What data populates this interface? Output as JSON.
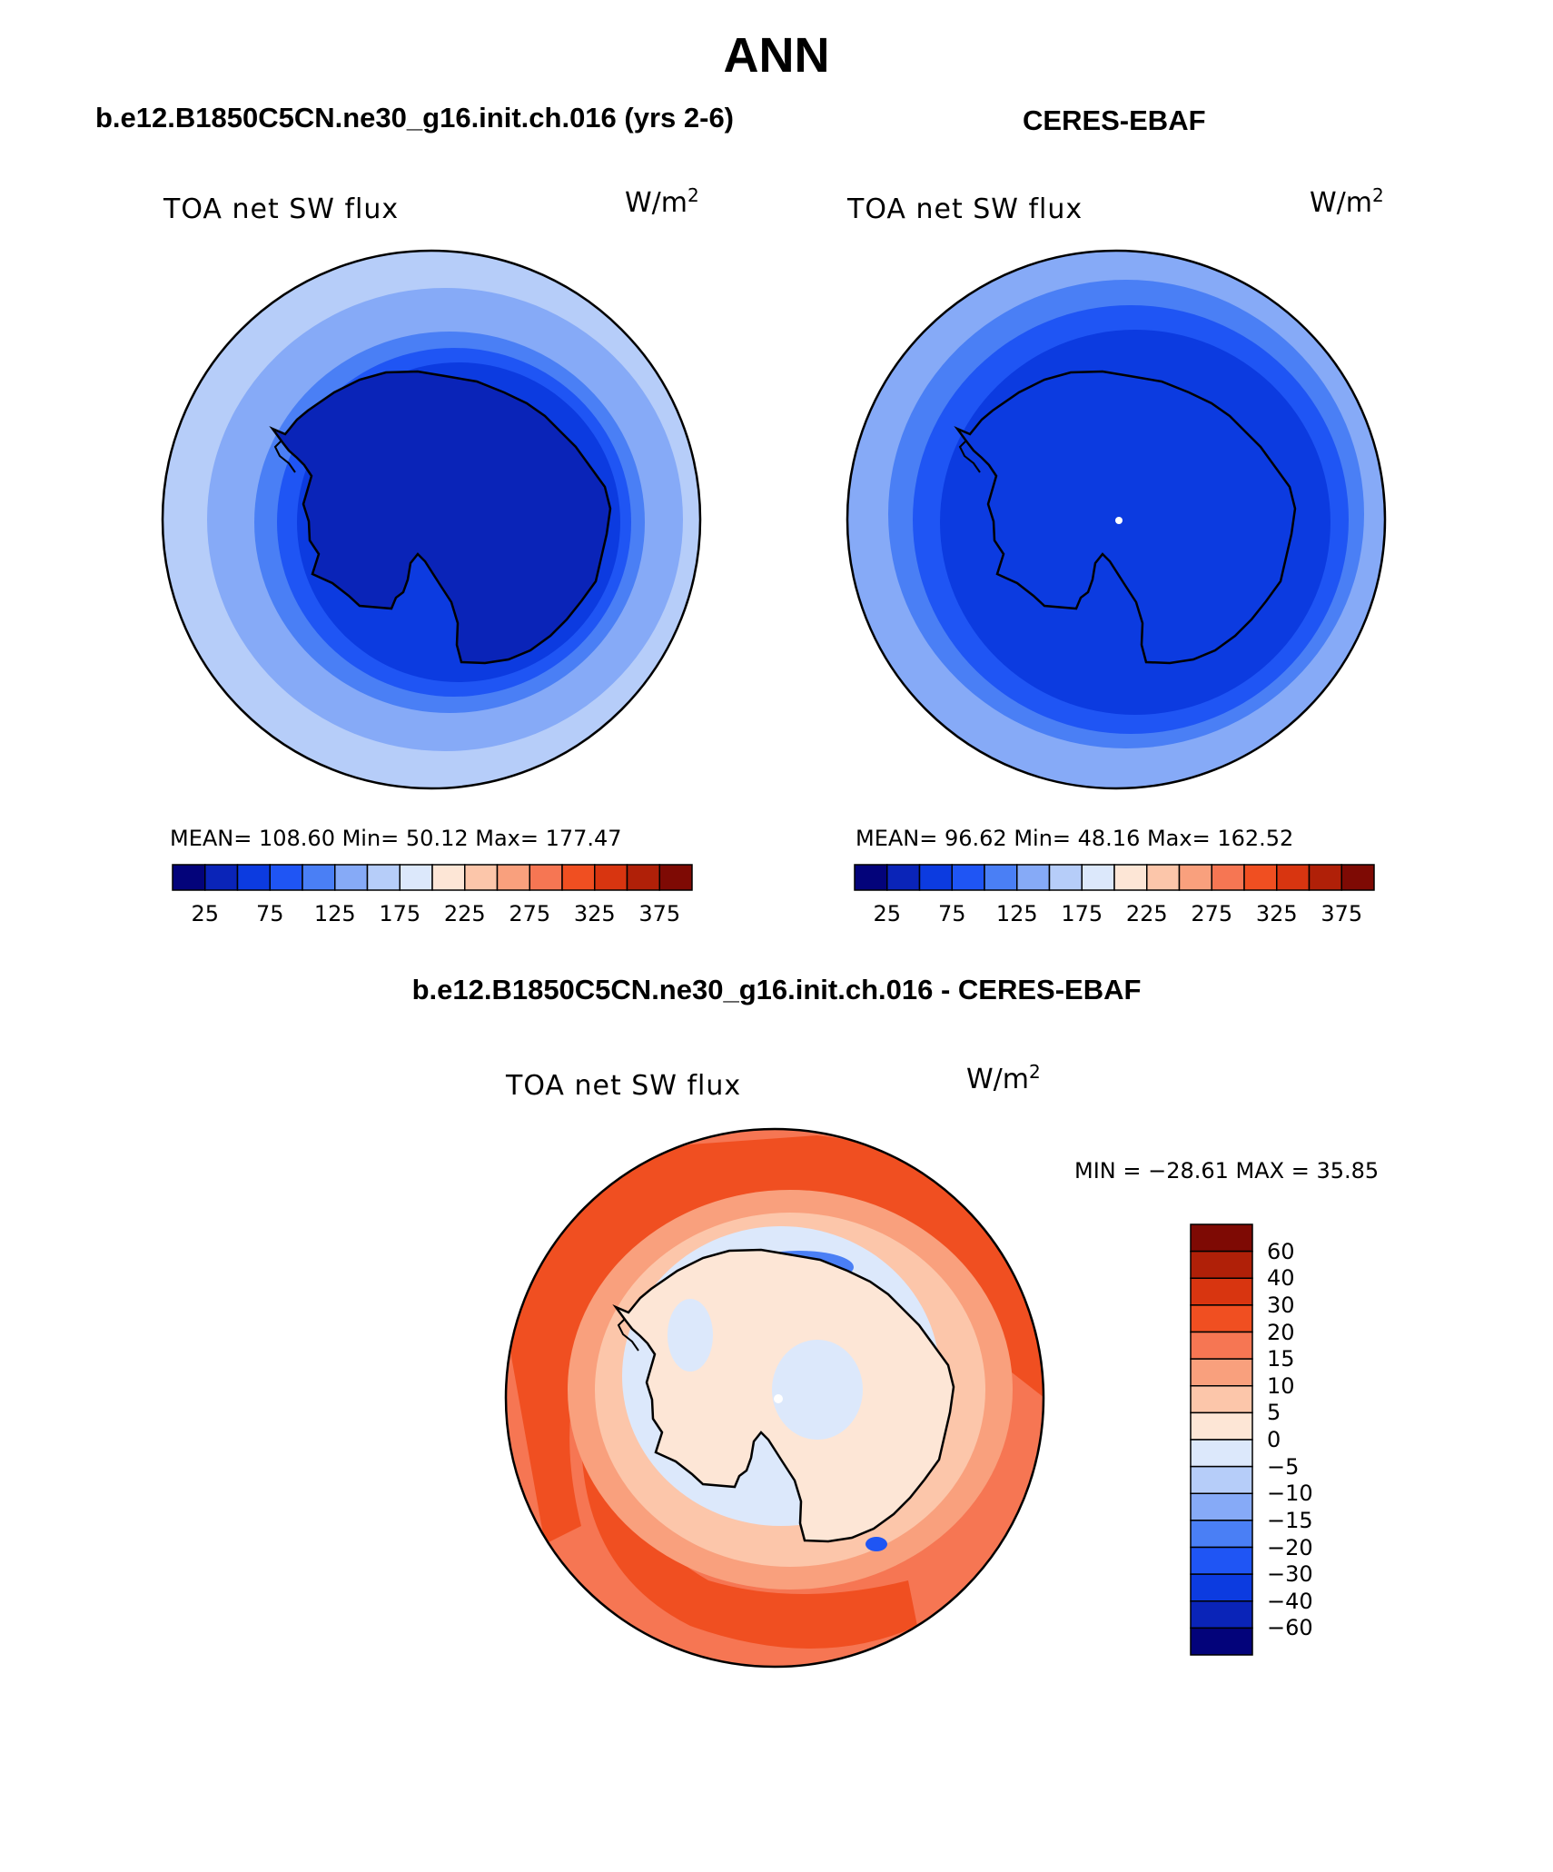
{
  "figure": {
    "title": "ANN",
    "left_title": "b.e12.B1850C5CN.ne30_g16.init.ch.016 (yrs 2-6)",
    "right_title": "CERES-EBAF",
    "diff_title": "b.e12.B1850C5CN.ne30_g16.init.ch.016 - CERES-EBAF"
  },
  "panels": {
    "left": {
      "variable": "TOA net SW flux",
      "units_base": "W/m",
      "units_exp": "2",
      "stats": "MEAN= 108.60   Min=   50.12   Max= 177.47"
    },
    "right": {
      "variable": "TOA net SW flux",
      "units_base": "W/m",
      "units_exp": "2",
      "stats": "MEAN=   96.62   Min=   48.16   Max= 162.52"
    },
    "diff": {
      "variable": "TOA net SW flux",
      "units_base": "W/m",
      "units_exp": "2",
      "stats": "MIN = −28.61 MAX =   35.85"
    }
  },
  "colorbars": {
    "abs_labels": [
      "25",
      "75",
      "125",
      "175",
      "225",
      "275",
      "325",
      "375"
    ],
    "abs_colors": [
      "#03037a",
      "#0a24b8",
      "#0c3be0",
      "#1f55f4",
      "#4a7ff5",
      "#86aaf7",
      "#b6cdf9",
      "#dce8fb",
      "#fde6d6",
      "#fcc6aa",
      "#f9a07d",
      "#f67653",
      "#f04f21",
      "#d83510",
      "#b02008",
      "#7e0a04"
    ],
    "diff_labels": [
      "60",
      "40",
      "30",
      "20",
      "15",
      "10",
      "5",
      "0",
      "−5",
      "−10",
      "−15",
      "−20",
      "−30",
      "−40",
      "−60"
    ],
    "diff_colors": [
      "#7e0a04",
      "#b02008",
      "#d83510",
      "#f04f21",
      "#f67653",
      "#f9a07d",
      "#fcc6aa",
      "#fde6d6",
      "#dce8fb",
      "#b6cdf9",
      "#86aaf7",
      "#4a7ff5",
      "#1f55f4",
      "#0c3be0",
      "#0a24b8",
      "#03037a"
    ]
  }
}
